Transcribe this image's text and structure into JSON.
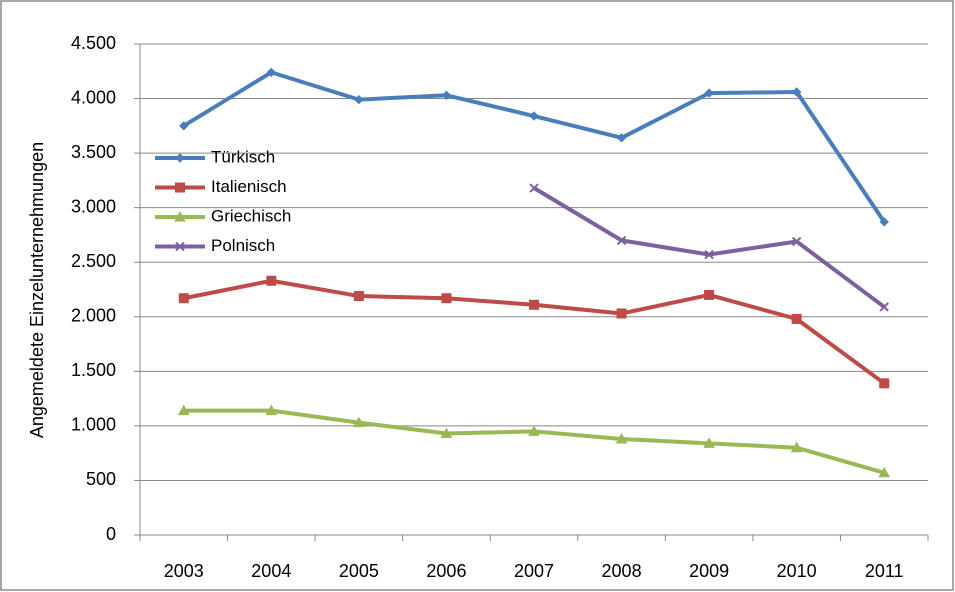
{
  "chart_data": {
    "type": "line",
    "y_label": "Angemeldete Einzelunternehmungen",
    "categories": [
      "2003",
      "2004",
      "2005",
      "2006",
      "2007",
      "2008",
      "2009",
      "2010",
      "2011"
    ],
    "series": [
      {
        "name": "Türkisch",
        "color": "#4a7ebb",
        "marker": "diamond",
        "values": [
          3750,
          4240,
          3990,
          4030,
          3840,
          3640,
          4050,
          4060,
          2870
        ]
      },
      {
        "name": "Italienisch",
        "color": "#be4b48",
        "marker": "square",
        "values": [
          2170,
          2330,
          2190,
          2170,
          2110,
          2030,
          2200,
          1980,
          1390
        ]
      },
      {
        "name": "Griechisch",
        "color": "#98b954",
        "marker": "triangle",
        "values": [
          1140,
          1140,
          1030,
          930,
          950,
          880,
          840,
          800,
          570
        ]
      },
      {
        "name": "Polnisch",
        "color": "#7d60a0",
        "marker": "x",
        "values": [
          null,
          null,
          null,
          null,
          3180,
          2700,
          2570,
          2690,
          2090
        ]
      }
    ],
    "ylim": [
      0,
      4500
    ],
    "yticks": [
      0,
      500,
      {
        "value": 1000,
        "label": "1.000"
      },
      {
        "value": 1500,
        "label": "1.500"
      },
      {
        "value": 2000,
        "label": "2.000"
      },
      {
        "value": 2500,
        "label": "2.500"
      },
      {
        "value": 3000,
        "label": "3.000"
      },
      {
        "value": 3500,
        "label": "3.500"
      },
      {
        "value": 4000,
        "label": "4.000"
      },
      {
        "value": 4500,
        "label": "4.500"
      }
    ],
    "grid": true,
    "legend": "left"
  }
}
